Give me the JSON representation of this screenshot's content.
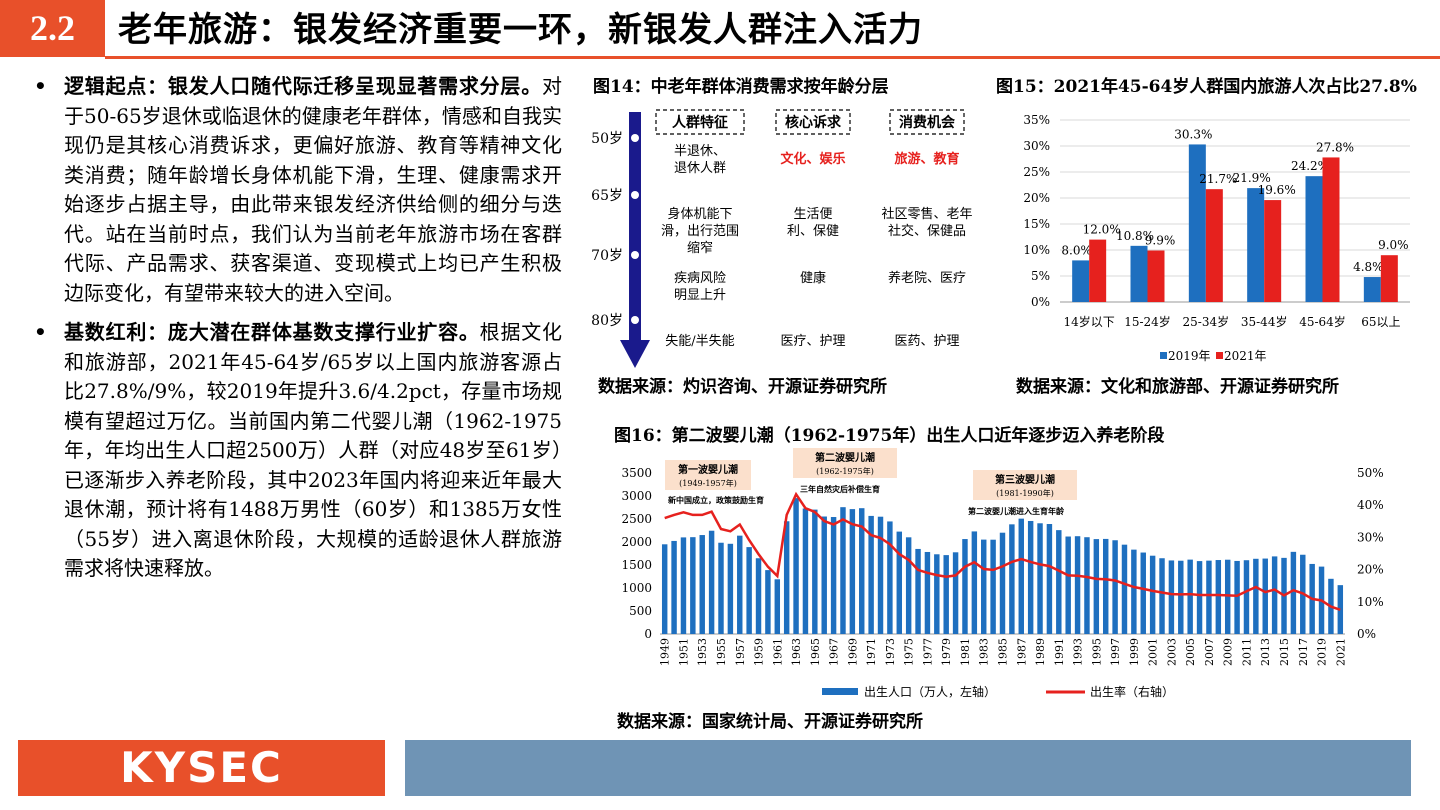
{
  "header": {
    "section": "2.2",
    "title": "老年旅游：银发经济重要一环，新银发人群注入活力"
  },
  "left": {
    "bullets": [
      {
        "bold": "逻辑起点：银发人口随代际迁移呈现显著需求分层。",
        "text": "对于50-65岁退休或临退休的健康老年群体，情感和自我实现仍是其核心消费诉求，更偏好旅游、教育等精神文化类消费；随年龄增长身体机能下滑，生理、健康需求开始逐步占据主导，由此带来银发经济供给侧的细分与迭代。站在当前时点，我们认为当前老年旅游市场在客群代际、产品需求、获客渠道、变现模式上均已产生积极边际变化，有望带来较大的进入空间。"
      },
      {
        "bold": "基数红利：庞大潜在群体基数支撑行业扩容。",
        "text": "根据文化和旅游部，2021年45-64岁/65岁以上国内旅游客源占比27.8%/9%，较2019年提升3.6/4.2pct，存量市场规模有望超过万亿。当前国内第二代婴儿潮（1962-1975年，年均出生人口超2500万）人群（对应48岁至61岁）已逐渐步入养老阶段，其中2023年国内将迎来近年最大退休潮，预计将有1488万男性（60岁）和1385万女性（55岁）进入离退休阶段，大规模的适龄退休人群旅游需求将快速释放。"
      }
    ]
  },
  "fig14": {
    "title": "图14：中老年群体消费需求按年龄分层",
    "headers": [
      "人群特征",
      "核心诉求",
      "消费机会"
    ],
    "ages": [
      "50岁",
      "65岁",
      "70岁",
      "80岁"
    ],
    "rows": [
      {
        "c1": "半退休、\n退休人群",
        "c2": "文化、娱乐",
        "c3": "旅游、教育",
        "highlight": true
      },
      {
        "c1": "身体机能下\n滑，出行范围\n缩窄",
        "c2": "生活便\n利、保健",
        "c3": "社区零售、老年\n社交、保健品",
        "highlight": false
      },
      {
        "c1": "疾病风险\n明显上升",
        "c2": "健康",
        "c3": "养老院、医疗",
        "highlight": false
      },
      {
        "c1": "失能/半失能",
        "c2": "医疗、护理",
        "c3": "医药、护理",
        "highlight": false
      }
    ],
    "source": "数据来源：灼识咨询、开源证券研究所",
    "colors": {
      "arrow": "#1a1a8c",
      "highlight": "#e6211e"
    }
  },
  "fig15": {
    "title": "图15：2021年45-64岁人群国内旅游人次占比27.8%",
    "source": "数据来源：文化和旅游部、开源证券研究所",
    "chart_data": {
      "type": "bar",
      "categories": [
        "14岁以下",
        "15-24岁",
        "25-34岁",
        "35-44岁",
        "45-64岁",
        "65以上"
      ],
      "series": [
        {
          "name": "2019年",
          "values": [
            8.0,
            10.8,
            30.3,
            21.9,
            24.2,
            4.8
          ],
          "labels": [
            "8.0%",
            "10.8%",
            "30.3%",
            "21.9%",
            "24.2%",
            "4.8%"
          ],
          "color": "#1e6fbf"
        },
        {
          "name": "2021年",
          "values": [
            12.0,
            9.9,
            21.7,
            19.6,
            27.8,
            9.0
          ],
          "labels": [
            "12.0%",
            "9.9%",
            "21.7%",
            "19.6%",
            "27.8%",
            "9.0%"
          ],
          "color": "#e6211e"
        }
      ],
      "yticks": [
        "0%",
        "5%",
        "10%",
        "15%",
        "20%",
        "25%",
        "30%",
        "35%"
      ],
      "ylim": [
        0,
        35
      ],
      "grid": true,
      "legend": "bottom"
    }
  },
  "fig16": {
    "title": "图16：第二波婴儿潮（1962-1975年）出生人口近年逐步迈入养老阶段",
    "source": "数据来源：国家统计局、开源证券研究所",
    "annotations": {
      "wave1": "第一波婴儿潮",
      "wave1_years": "(1949-1957年)",
      "wave1_note": "新中国成立，政策鼓励生育",
      "wave2": "第二波婴儿潮",
      "wave2_years": "(1962-1975年)",
      "wave2_note": "三年自然灾后补偿生育",
      "wave3": "第三波婴儿潮",
      "wave3_years": "(1981-1990年)",
      "wave3_note": "第二波婴儿潮进入生育年龄"
    },
    "chart_data": {
      "type": "bar",
      "x": [
        1949,
        1950,
        1951,
        1952,
        1953,
        1954,
        1955,
        1956,
        1957,
        1958,
        1959,
        1960,
        1961,
        1962,
        1963,
        1964,
        1965,
        1966,
        1967,
        1968,
        1969,
        1970,
        1971,
        1972,
        1973,
        1974,
        1975,
        1976,
        1977,
        1978,
        1979,
        1980,
        1981,
        1982,
        1983,
        1984,
        1985,
        1986,
        1987,
        1988,
        1989,
        1990,
        1991,
        1992,
        1993,
        1994,
        1995,
        1996,
        1997,
        1998,
        1999,
        2000,
        2001,
        2002,
        2003,
        2004,
        2005,
        2006,
        2007,
        2008,
        2009,
        2010,
        2011,
        2012,
        2013,
        2014,
        2015,
        2016,
        2017,
        2018,
        2019,
        2020,
        2021
      ],
      "xticks": [
        "1949",
        "1951",
        "1953",
        "1955",
        "1957",
        "1959",
        "1961",
        "1963",
        "1965",
        "1967",
        "1969",
        "1971",
        "1973",
        "1975",
        "1977",
        "1979",
        "1981",
        "1983",
        "1985",
        "1987",
        "1989",
        "1991",
        "1993",
        "1995",
        "1997",
        "1999",
        "2001",
        "2003",
        "2005",
        "2007",
        "2009",
        "2011",
        "2013",
        "2015",
        "2017",
        "2019",
        "2021"
      ],
      "series": [
        {
          "name": "出生人口（万人，左轴）",
          "axis": "left",
          "color": "#1e6fbf",
          "values": [
            1950,
            2023,
            2100,
            2105,
            2151,
            2245,
            1984,
            1961,
            2138,
            1889,
            1647,
            1389,
            1189,
            2451,
            2954,
            2729,
            2704,
            2554,
            2543,
            2757,
            2715,
            2735,
            2567,
            2550,
            2447,
            2226,
            2102,
            1849,
            1783,
            1733,
            1715,
            1776,
            2064,
            2230,
            2052,
            2050,
            2202,
            2384,
            2508,
            2457,
            2407,
            2391,
            2258,
            2119,
            2126,
            2104,
            2063,
            2067,
            2038,
            1942,
            1834,
            1771,
            1702,
            1647,
            1599,
            1593,
            1617,
            1585,
            1595,
            1608,
            1615,
            1588,
            1604,
            1635,
            1640,
            1687,
            1655,
            1786,
            1723,
            1523,
            1465,
            1200,
            1062
          ]
        },
        {
          "name": "出生率（右轴）",
          "axis": "right",
          "color": "#e6211e",
          "values": [
            36.0,
            37.0,
            37.8,
            37.0,
            37.0,
            37.97,
            32.6,
            31.9,
            34.0,
            29.2,
            24.8,
            20.9,
            18.0,
            37.0,
            43.4,
            39.1,
            37.9,
            35.1,
            34.0,
            35.6,
            34.1,
            33.4,
            30.7,
            29.8,
            27.9,
            24.8,
            23.0,
            19.9,
            19.0,
            18.3,
            17.8,
            18.2,
            20.9,
            22.3,
            20.2,
            19.9,
            21.0,
            22.4,
            23.3,
            22.4,
            21.6,
            21.1,
            19.7,
            18.2,
            18.1,
            17.7,
            17.1,
            17.0,
            16.6,
            15.6,
            14.6,
            14.0,
            13.4,
            12.9,
            12.4,
            12.3,
            12.4,
            12.1,
            12.1,
            12.1,
            12.0,
            11.9,
            13.3,
            14.6,
            13.0,
            13.8,
            12.0,
            13.6,
            12.6,
            10.9,
            10.4,
            8.5,
            7.5
          ]
        }
      ],
      "ylim_left": [
        0,
        3500
      ],
      "ylim_right": [
        0,
        50
      ],
      "yticks_left": [
        "0",
        "500",
        "1000",
        "1500",
        "2000",
        "2500",
        "3000",
        "3500"
      ],
      "yticks_right": [
        "0%",
        "10%",
        "20%",
        "30%",
        "40%",
        "50%"
      ],
      "legend": "bottom"
    }
  },
  "footer": {
    "logo": "KYSEC"
  }
}
